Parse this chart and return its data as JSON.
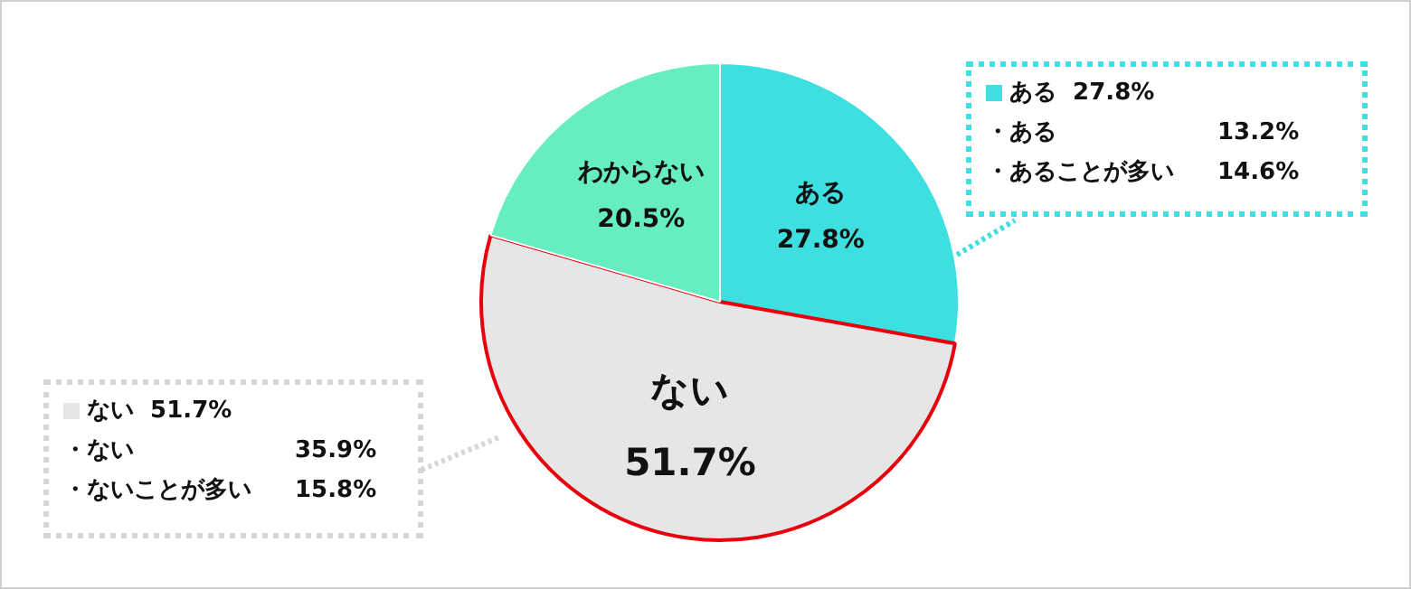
{
  "chart_data": {
    "type": "pie",
    "categories": [
      "ある",
      "ない",
      "わからない"
    ],
    "values": [
      27.8,
      51.7,
      20.5
    ],
    "colors": [
      "#3ddfe0",
      "#e6e6e6",
      "#66eec0"
    ],
    "value_labels": [
      "27.8%",
      "51.7%",
      "20.5%"
    ],
    "legend": false,
    "annotations": [
      "ある  27.8%",
      "・ある",
      "13.2%",
      "・あることが多い",
      "14.6%",
      "ない  51.7%",
      "・ない",
      "35.9%",
      "・ないことが多い",
      "15.8%"
    ]
  }
}
